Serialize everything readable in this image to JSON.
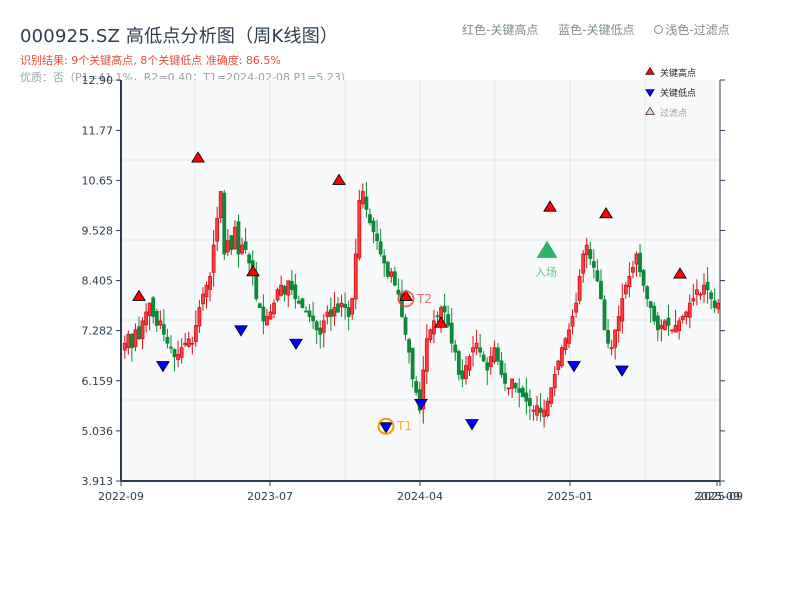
{
  "header": {
    "title": "000925.SZ 高低点分析图（周K线图）",
    "result_line": "识别结果: 9个关键高点, 8个关键低点  准确度: 86.5%",
    "quality_line": "优质：否（P1=41.1%，R2=0.40；T1=2024-02-08 P1=5.23）"
  },
  "top_legend": {
    "red": "红色-关键高点",
    "blue": "蓝色-关键低点",
    "light": "浅色-过滤点"
  },
  "legend": {
    "items": [
      {
        "label": "关键高点",
        "color": "#ff0000",
        "shape": "triangle-up"
      },
      {
        "label": "关键低点",
        "color": "#0000ff",
        "shape": "triangle-down"
      },
      {
        "label": "过滤点",
        "color": "#ffcccc",
        "shape": "triangle-up"
      }
    ]
  },
  "colors": {
    "up": "#d0121b",
    "down": "#0c8a3a",
    "high_marker": "#ff0000",
    "low_marker": "#0000ff",
    "entry_marker": "#27ae60",
    "t1_ring": "#f39c12",
    "t2_ring": "#e74c3c",
    "plot_bg": "#f7f9fb",
    "grid": "#e3e6ea",
    "axis": "#2c3e50"
  },
  "annotations": {
    "t1": "T1",
    "t2": "T2",
    "entry": "入场"
  },
  "chart_data": {
    "type": "candlestick",
    "title": "000925.SZ 高低点分析图（周K线图）",
    "xlabel": "",
    "ylabel": "",
    "ylim": [
      3.913,
      12.9
    ],
    "yticks": [
      "3.913",
      "5.036",
      "6.159",
      "7.282",
      "8.405",
      "9.528",
      "10.65",
      "11.77",
      "12.90"
    ],
    "xticks": [
      "2022-09",
      "2023-07",
      "2024-04",
      "2025-01",
      "2025-09",
      "2025-09"
    ],
    "grid": true,
    "legend_position": "upper right",
    "key_highs": [
      {
        "x": 139,
        "price": 7.95
      },
      {
        "x": 198,
        "price": 11.05
      },
      {
        "x": 253,
        "price": 8.5
      },
      {
        "x": 339,
        "price": 10.55
      },
      {
        "x": 406,
        "price": 7.95
      },
      {
        "x": 441,
        "price": 7.35
      },
      {
        "x": 550,
        "price": 9.95
      },
      {
        "x": 606,
        "price": 9.8
      },
      {
        "x": 680,
        "price": 8.45
      }
    ],
    "key_lows": [
      {
        "x": 163,
        "price": 6.6
      },
      {
        "x": 241,
        "price": 7.4
      },
      {
        "x": 296,
        "price": 7.1
      },
      {
        "x": 386,
        "price": 5.23
      },
      {
        "x": 421,
        "price": 5.75
      },
      {
        "x": 472,
        "price": 5.3
      },
      {
        "x": 574,
        "price": 6.6
      },
      {
        "x": 622,
        "price": 6.5
      }
    ],
    "entry": {
      "x": 547,
      "price": 9.05,
      "label": "入场"
    },
    "t1": {
      "x": 386,
      "price": 5.23,
      "date": "2024-02-08",
      "label": "T1"
    },
    "t2": {
      "x": 406,
      "price": 7.95,
      "label": "T2"
    },
    "candles_close_path": [
      7.0,
      7.2,
      6.9,
      7.3,
      7.1,
      7.5,
      7.7,
      7.9,
      7.6,
      7.4,
      7.5,
      7.2,
      7.0,
      6.9,
      6.7,
      6.75,
      6.9,
      7.0,
      7.1,
      7.0,
      7.4,
      7.8,
      8.1,
      8.3,
      8.5,
      9.2,
      9.8,
      10.4,
      9.0,
      9.3,
      9.1,
      9.6,
      9.0,
      9.2,
      9.1,
      8.8,
      8.6,
      8.0,
      7.8,
      7.5,
      7.6,
      7.7,
      7.9,
      8.2,
      8.3,
      8.1,
      8.4,
      8.2,
      8.0,
      7.9,
      7.8,
      7.7,
      7.6,
      7.5,
      7.3,
      7.2,
      7.5,
      7.7,
      7.6,
      7.8,
      7.7,
      7.9,
      7.8,
      7.6,
      8.0,
      9.0,
      10.2,
      10.4,
      10.0,
      9.7,
      9.5,
      9.3,
      9.0,
      8.8,
      8.5,
      8.6,
      8.3,
      8.1,
      7.6,
      7.2,
      6.8,
      6.2,
      5.9,
      5.5,
      6.4,
      7.1,
      7.3,
      7.5,
      7.6,
      7.8,
      7.7,
      7.4,
      7.0,
      6.8,
      6.3,
      6.2,
      6.5,
      6.7,
      6.9,
      7.0,
      6.8,
      6.6,
      6.4,
      6.7,
      6.9,
      6.6,
      6.3,
      6.1,
      6.0,
      6.2,
      6.0,
      5.9,
      5.8,
      5.7,
      5.6,
      5.5,
      5.6,
      5.45,
      5.5,
      5.7,
      6.0,
      6.3,
      6.6,
      6.9,
      7.1,
      7.3,
      7.6,
      7.9,
      8.5,
      9.0,
      9.2,
      8.9,
      8.7,
      8.4,
      8.0,
      7.3,
      7.0,
      6.9,
      7.3,
      7.6,
      8.0,
      8.3,
      8.5,
      8.7,
      9.0,
      8.6,
      8.3,
      8.0,
      7.8,
      7.5,
      7.3,
      7.4,
      7.5,
      7.4,
      7.3,
      7.4,
      7.5,
      7.6,
      7.7,
      7.9,
      8.0,
      8.2,
      8.1,
      8.3,
      8.2,
      8.0,
      7.8,
      7.9
    ]
  }
}
